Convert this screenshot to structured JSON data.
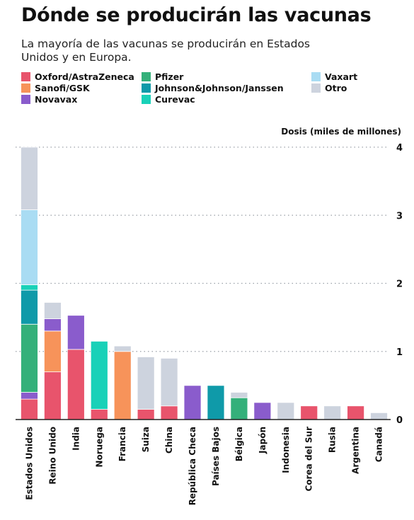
{
  "title": "Dónde se producirán las vacunas",
  "subtitle": "La mayoría de las vacunas se producirán en Estados Unidos y en Europa.",
  "colors": {
    "Oxford/AstraZeneca": "#e8546c",
    "Sanofi/GSK": "#f7935a",
    "Novavax": "#8a5ccc",
    "Pfizer": "#34b07a",
    "Johnson&Johnson/Janssen": "#0f9aa9",
    "Curevac": "#19d1b8",
    "Vaxart": "#a9dcf3",
    "Otro": "#cdd3de"
  },
  "legend": [
    {
      "label": "Oxford/AstraZeneca",
      "color": "#e8546c"
    },
    {
      "label": "Sanofi/GSK",
      "color": "#f7935a"
    },
    {
      "label": "Novavax",
      "color": "#8a5ccc"
    },
    {
      "label": "Pfizer",
      "color": "#34b07a"
    },
    {
      "label": "Johnson&Johnson/Janssen",
      "color": "#0f9aa9"
    },
    {
      "label": "Curevac",
      "color": "#19d1b8"
    },
    {
      "label": "Vaxart",
      "color": "#a9dcf3"
    },
    {
      "label": "Otro",
      "color": "#cdd3de"
    }
  ],
  "chart_data": {
    "type": "bar",
    "stacked": true,
    "ylabel": "Dosis (miles de millones)",
    "ylim": [
      0,
      4
    ],
    "yticks": [
      0,
      1,
      2,
      3,
      4
    ],
    "grid": true,
    "legend_position": "top",
    "categories": [
      "Estados Unidos",
      "Reino Unido",
      "India",
      "Noruega",
      "Francia",
      "Suiza",
      "China",
      "República Checa",
      "Países Bajos",
      "Bélgica",
      "Japón",
      "Indonesia",
      "Corea del Sur",
      "Rusia",
      "Argentina",
      "Canadá"
    ],
    "series": [
      {
        "name": "Oxford/AstraZeneca",
        "values": [
          0.3,
          0.7,
          1.03,
          0.15,
          0,
          0.15,
          0.2,
          0,
          0,
          0,
          0,
          0,
          0.2,
          0,
          0.2,
          0
        ]
      },
      {
        "name": "Sanofi/GSK",
        "values": [
          0,
          0.6,
          0,
          0,
          1.0,
          0,
          0,
          0,
          0,
          0,
          0,
          0,
          0,
          0,
          0,
          0
        ]
      },
      {
        "name": "Novavax",
        "values": [
          0.1,
          0.18,
          0.5,
          0,
          0,
          0,
          0,
          0.5,
          0,
          0,
          0.25,
          0,
          0,
          0,
          0,
          0
        ]
      },
      {
        "name": "Pfizer",
        "values": [
          1.0,
          0,
          0,
          0,
          0,
          0,
          0,
          0,
          0,
          0.32,
          0,
          0,
          0,
          0,
          0,
          0
        ]
      },
      {
        "name": "Johnson&Johnson/Janssen",
        "values": [
          0.5,
          0,
          0,
          0,
          0,
          0,
          0,
          0,
          0.5,
          0,
          0,
          0,
          0,
          0,
          0,
          0
        ]
      },
      {
        "name": "Curevac",
        "values": [
          0.08,
          0,
          0,
          1.0,
          0,
          0,
          0,
          0,
          0,
          0,
          0,
          0,
          0,
          0,
          0,
          0
        ]
      },
      {
        "name": "Vaxart",
        "values": [
          1.1,
          0,
          0,
          0,
          0,
          0,
          0,
          0,
          0,
          0,
          0,
          0,
          0,
          0,
          0,
          0
        ]
      },
      {
        "name": "Otro",
        "values": [
          0.92,
          0.24,
          0,
          0,
          0.08,
          0.77,
          0.7,
          0,
          0,
          0.08,
          0,
          0.25,
          0,
          0.2,
          0,
          0.1
        ]
      }
    ]
  }
}
